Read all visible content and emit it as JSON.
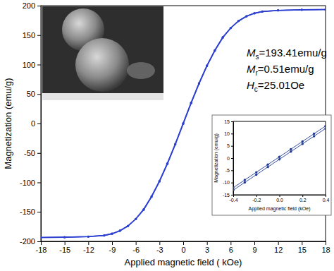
{
  "chart_data": [
    {
      "type": "line",
      "xlabel": "Applied magnetic field ( kOe)",
      "ylabel": "Magnetization (emu/g)",
      "x": [
        -18,
        -15,
        -12,
        -10,
        -9,
        -8,
        -7,
        -6,
        -5,
        -4,
        -3,
        -2,
        -1,
        0,
        1,
        2,
        3,
        4,
        5,
        6,
        7,
        8,
        9,
        10,
        12,
        15,
        18
      ],
      "series": [
        {
          "color": "#2a3fd0",
          "marker": "circle",
          "line_style": "solid",
          "values": [
            -193.4,
            -193,
            -192,
            -190,
            -187,
            -182,
            -174,
            -162,
            -146.5,
            -124.5,
            -98.5,
            -68.5,
            -35.5,
            -0.5,
            34.5,
            67.5,
            97.5,
            123.5,
            145.5,
            162,
            174,
            182,
            187,
            190,
            192,
            193,
            193.4
          ]
        },
        {
          "color": "#2a3fd0",
          "marker": "circle",
          "line_style": "solid",
          "values": [
            -193.4,
            -193,
            -192,
            -190,
            -187,
            -182,
            -174,
            -162,
            -145.5,
            -123.5,
            -97.5,
            -67.5,
            -34.5,
            0.5,
            35.5,
            68.5,
            98.5,
            124.5,
            146.5,
            162,
            174,
            182,
            187,
            190,
            192,
            193,
            193.4
          ]
        }
      ],
      "xlim": [
        -18,
        18
      ],
      "xticks": [
        -18,
        -15,
        -12,
        -9,
        -6,
        -3,
        0,
        3,
        6,
        9,
        12,
        15,
        18
      ],
      "ylim": [
        -200,
        200
      ],
      "yticks": [
        -200,
        -150,
        -100,
        -50,
        0,
        50,
        100,
        150,
        200
      ],
      "annotations": [
        {
          "symbol": "M",
          "sub": "s",
          "text": "=193.41emu/g"
        },
        {
          "symbol": "M",
          "sub": "r",
          "text": "=0.51emu/g"
        },
        {
          "symbol": "H",
          "sub": "c",
          "text": "=25.01Oe"
        }
      ]
    },
    {
      "type": "line",
      "xlabel": "Applied magnetic field (kOe)",
      "ylabel": "Magnetization (emu/g)",
      "x": [
        -0.4,
        -0.3,
        -0.2,
        -0.1,
        0,
        0.1,
        0.2,
        0.3,
        0.4
      ],
      "series": [
        {
          "color": "#1f3a93",
          "marker": "circle",
          "line_style": "solid",
          "values": [
            -12.1,
            -8.95,
            -5.8,
            -2.65,
            0.5,
            3.65,
            6.8,
            9.95,
            13.1
          ]
        },
        {
          "color": "#1f3a93",
          "marker": "circle",
          "line_style": "solid",
          "values": [
            -13.1,
            -9.95,
            -6.8,
            -3.65,
            -0.5,
            2.65,
            5.8,
            8.95,
            12.1
          ]
        }
      ],
      "xlim": [
        -0.4,
        0.4
      ],
      "xticks": [
        -0.4,
        -0.2,
        {
          "value": 0,
          "label": "0.0"
        },
        0.2,
        0.4
      ],
      "ylim": [
        -15,
        15
      ],
      "yticks": [
        -15,
        -10,
        -5,
        0,
        5,
        10,
        15
      ]
    }
  ]
}
